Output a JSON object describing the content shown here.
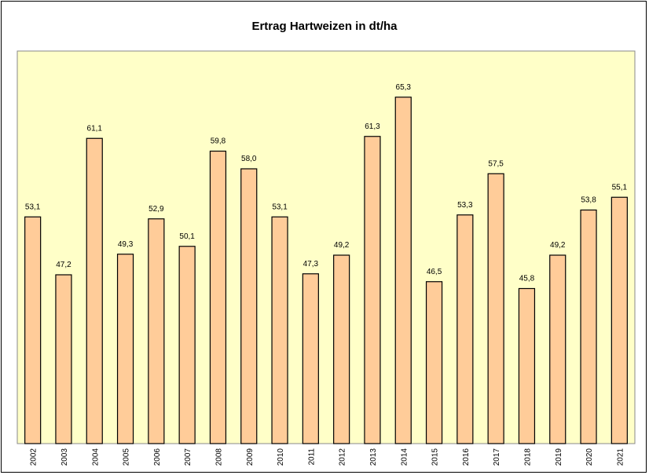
{
  "chart_data": {
    "type": "bar",
    "title": "Ertrag Hartweizen in dt/ha",
    "categories": [
      "2002",
      "2003",
      "2004",
      "2005",
      "2006",
      "2007",
      "2008",
      "2009",
      "2010",
      "2011",
      "2012",
      "2013",
      "2014",
      "2015",
      "2016",
      "2017",
      "2018",
      "2019",
      "2020",
      "2021"
    ],
    "values": [
      53.1,
      47.2,
      61.1,
      49.3,
      52.9,
      50.1,
      59.8,
      58.0,
      53.1,
      47.3,
      49.2,
      61.3,
      65.3,
      46.5,
      53.3,
      57.5,
      45.8,
      49.2,
      53.8,
      55.1
    ],
    "value_labels": [
      "53,1",
      "47,2",
      "61,1",
      "49,3",
      "52,9",
      "50,1",
      "59,8",
      "58,0",
      "53,1",
      "47,3",
      "49,2",
      "61,3",
      "65,3",
      "46,5",
      "53,3",
      "57,5",
      "45,8",
      "49,2",
      "53,8",
      "55,1"
    ],
    "color": "#ffcc99",
    "ylim": [
      30,
      70
    ]
  }
}
